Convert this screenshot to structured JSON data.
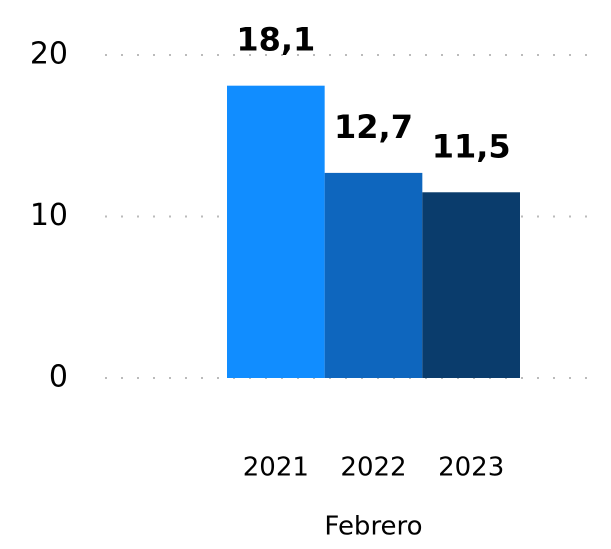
{
  "chart_data": {
    "type": "bar",
    "categories": [
      "Febrero"
    ],
    "series": [
      {
        "name": "2021",
        "color": "#118dff",
        "values": [
          18.1
        ],
        "value_labels": [
          "18,1"
        ]
      },
      {
        "name": "2022",
        "color": "#0e66be",
        "values": [
          12.7
        ],
        "value_labels": [
          "12,7"
        ]
      },
      {
        "name": "2023",
        "color": "#0a3c6c",
        "values": [
          11.5
        ],
        "value_labels": [
          "11,5"
        ]
      }
    ],
    "ylim": [
      0,
      20
    ],
    "yticks": [
      0,
      10,
      20
    ],
    "grid": true
  }
}
